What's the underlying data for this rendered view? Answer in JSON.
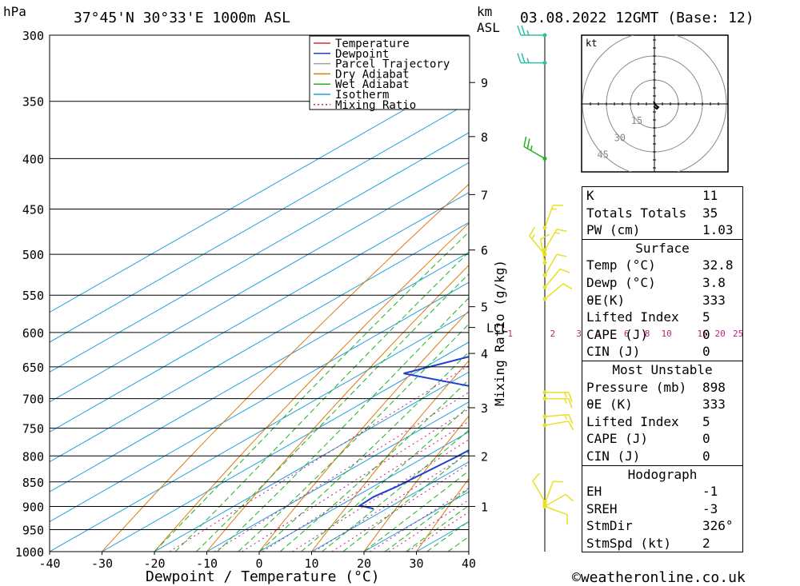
{
  "header": {
    "pressure_unit": "hPa",
    "location": "37°45'N  30°33'E  1000m  ASL",
    "km_label": "km",
    "asl_label": "ASL",
    "datetime": "03.08.2022  12GMT  (Base: 12)"
  },
  "colors": {
    "temperature": "#e03030",
    "dewpoint": "#2040d0",
    "parcel": "#a0a0a0",
    "dry_adiabat": "#e07a10",
    "wet_adiabat": "#20b020",
    "isotherm": "#20a0e0",
    "mixing_ratio": "#c02080",
    "wind_upper": "#30c0a0",
    "wind_mid": "#20b020",
    "wind_low": "#e8e020"
  },
  "chart_data": {
    "type": "line",
    "title": "37°45'N  30°33'E  1000m  ASL",
    "xlabel": "Dewpoint / Temperature (°C)",
    "ylabel": "hPa",
    "right_label": "Mixing Ratio (g/kg)",
    "xlim": [
      -40,
      40
    ],
    "ylim": [
      1000,
      300
    ],
    "x_ticks": [
      -40,
      -30,
      -20,
      -10,
      0,
      10,
      20,
      30,
      40
    ],
    "x_tick_labels": [
      "-40",
      "-30",
      "-20",
      "-10",
      "0",
      "10",
      "20",
      "30",
      "40"
    ],
    "pressure_levels": [
      300,
      350,
      400,
      450,
      500,
      550,
      600,
      650,
      700,
      750,
      800,
      850,
      900,
      950,
      1000
    ],
    "pressure_labels": [
      "300",
      "350",
      "400",
      "450",
      "500",
      "550",
      "600",
      "650",
      "700",
      "750",
      "800",
      "850",
      "900",
      "950",
      "1000"
    ],
    "km_ticks": [
      {
        "label": "1",
        "p": 900
      },
      {
        "label": "2",
        "p": 800
      },
      {
        "label": "3",
        "p": 715
      },
      {
        "label": "4",
        "p": 630
      },
      {
        "label": "5",
        "p": 565
      },
      {
        "label": "6",
        "p": 495
      },
      {
        "label": "7",
        "p": 435
      },
      {
        "label": "8",
        "p": 380
      },
      {
        "label": "9",
        "p": 335
      }
    ],
    "lcl": {
      "label": "LCL",
      "p": 593
    },
    "mixing_ratio_labels": [
      "1",
      "2",
      "3",
      "4",
      "6",
      "8",
      "10",
      "16",
      "20",
      "25"
    ],
    "mixing_ratio_values": [
      1,
      2,
      3,
      4,
      6,
      8,
      10,
      16,
      20,
      25
    ],
    "series": [
      {
        "name": "Temperature",
        "points": [
          [
            33.5,
            910
          ],
          [
            32.8,
            898
          ],
          [
            30.5,
            870
          ],
          [
            27.5,
            840
          ],
          [
            23.5,
            800
          ],
          [
            20.5,
            770
          ],
          [
            17.5,
            740
          ],
          [
            15.5,
            710
          ],
          [
            13.5,
            685
          ],
          [
            14.5,
            665
          ],
          [
            13.5,
            640
          ],
          [
            10.5,
            600
          ],
          [
            8.5,
            570
          ],
          [
            6.5,
            540
          ],
          [
            5.0,
            510
          ],
          [
            4.5,
            495
          ],
          [
            4.0,
            470
          ],
          [
            3.0,
            450
          ],
          [
            0.5,
            425
          ],
          [
            -2.5,
            400
          ],
          [
            -5.5,
            375
          ],
          [
            -7.5,
            360
          ],
          [
            -9.5,
            345
          ],
          [
            -13.0,
            320
          ],
          [
            -15.5,
            300
          ]
        ]
      },
      {
        "name": "Dewpoint",
        "points": [
          [
            7.5,
            905
          ],
          [
            3.8,
            898
          ],
          [
            3.5,
            880
          ],
          [
            4.5,
            860
          ],
          [
            6.0,
            800
          ],
          [
            6.5,
            750
          ],
          [
            -2.0,
            705
          ],
          [
            -15.0,
            680
          ],
          [
            -32.0,
            660
          ],
          [
            -21.0,
            620
          ],
          [
            -10.0,
            600
          ],
          [
            -18.0,
            550
          ],
          [
            -24.0,
            505
          ],
          [
            -26.0,
            490
          ],
          [
            -22.0,
            460
          ],
          [
            -22.0,
            400
          ],
          [
            -21.0,
            370
          ],
          [
            -21.0,
            360
          ],
          [
            -21.5,
            340
          ],
          [
            -23.0,
            320
          ],
          [
            -24.0,
            300
          ]
        ]
      },
      {
        "name": "Parcel Trajectory",
        "points": [
          [
            32.8,
            898
          ],
          [
            28.5,
            800
          ],
          [
            25.0,
            720
          ],
          [
            21.5,
            650
          ],
          [
            18.5,
            593
          ],
          [
            15.0,
            560
          ],
          [
            11.5,
            520
          ],
          [
            8.0,
            480
          ],
          [
            3.0,
            440
          ],
          [
            -2.0,
            400
          ],
          [
            -8.0,
            360
          ],
          [
            -14.0,
            320
          ],
          [
            -17.0,
            305
          ]
        ]
      },
      {
        "name": "Dry Adiabat",
        "points": []
      },
      {
        "name": "Wet Adiabat",
        "points": []
      },
      {
        "name": "Isotherm",
        "points": []
      },
      {
        "name": "Mixing Ratio",
        "points": []
      }
    ],
    "wind_barbs": [
      {
        "p": 300,
        "dir": 270,
        "speed": 25,
        "color": "wind_upper"
      },
      {
        "p": 320,
        "dir": 270,
        "speed": 25,
        "color": "wind_upper"
      },
      {
        "p": 400,
        "dir": 300,
        "speed": 25,
        "color": "wind_mid"
      },
      {
        "p": 470,
        "dir": 20,
        "speed": 15,
        "color": "wind_low"
      },
      {
        "p": 495,
        "dir": 30,
        "speed": 15,
        "color": "wind_low"
      },
      {
        "p": 500,
        "dir": 320,
        "speed": 15,
        "color": "wind_low"
      },
      {
        "p": 510,
        "dir": 350,
        "speed": 10,
        "color": "wind_low"
      },
      {
        "p": 525,
        "dir": 30,
        "speed": 10,
        "color": "wind_low"
      },
      {
        "p": 540,
        "dir": 40,
        "speed": 10,
        "color": "wind_low"
      },
      {
        "p": 555,
        "dir": 50,
        "speed": 10,
        "color": "wind_low"
      },
      {
        "p": 690,
        "dir": 90,
        "speed": 15,
        "color": "wind_low"
      },
      {
        "p": 700,
        "dir": 90,
        "speed": 15,
        "color": "wind_low"
      },
      {
        "p": 730,
        "dir": 85,
        "speed": 15,
        "color": "wind_low"
      },
      {
        "p": 745,
        "dir": 80,
        "speed": 10,
        "color": "wind_low"
      },
      {
        "p": 890,
        "dir": 330,
        "speed": 10,
        "color": "wind_low"
      },
      {
        "p": 895,
        "dir": 20,
        "speed": 10,
        "color": "wind_low"
      },
      {
        "p": 900,
        "dir": 60,
        "speed": 10,
        "color": "wind_low"
      },
      {
        "p": 900,
        "dir": 110,
        "speed": 10,
        "color": "wind_low"
      }
    ],
    "hodograph": {
      "unit_label": "kt",
      "ring_labels": [
        "15",
        "30",
        "45"
      ],
      "ring_values": [
        15,
        30,
        45
      ]
    }
  },
  "stats": {
    "indices": [
      {
        "label": "K",
        "value": "11"
      },
      {
        "label": "Totals Totals",
        "value": "35"
      },
      {
        "label": "PW (cm)",
        "value": "1.03"
      }
    ],
    "surface": {
      "title": "Surface",
      "rows": [
        {
          "label": "Temp (°C)",
          "value": "32.8"
        },
        {
          "label": "Dewp (°C)",
          "value": "3.8"
        },
        {
          "label": "θE(K)",
          "value": "333"
        },
        {
          "label": "Lifted Index",
          "value": "5"
        },
        {
          "label": "CAPE (J)",
          "value": "0"
        },
        {
          "label": "CIN (J)",
          "value": "0"
        }
      ]
    },
    "most_unstable": {
      "title": "Most Unstable",
      "rows": [
        {
          "label": "Pressure (mb)",
          "value": "898"
        },
        {
          "label": "θE (K)",
          "value": "333"
        },
        {
          "label": "Lifted Index",
          "value": "5"
        },
        {
          "label": "CAPE (J)",
          "value": "0"
        },
        {
          "label": "CIN (J)",
          "value": "0"
        }
      ]
    },
    "hodograph": {
      "title": "Hodograph",
      "rows": [
        {
          "label": "EH",
          "value": "-1"
        },
        {
          "label": "SREH",
          "value": "-3"
        },
        {
          "label": "StmDir",
          "value": "326°"
        },
        {
          "label": "StmSpd (kt)",
          "value": "2"
        }
      ]
    }
  },
  "footer": {
    "copyright": "©weatheronline.co.uk"
  }
}
